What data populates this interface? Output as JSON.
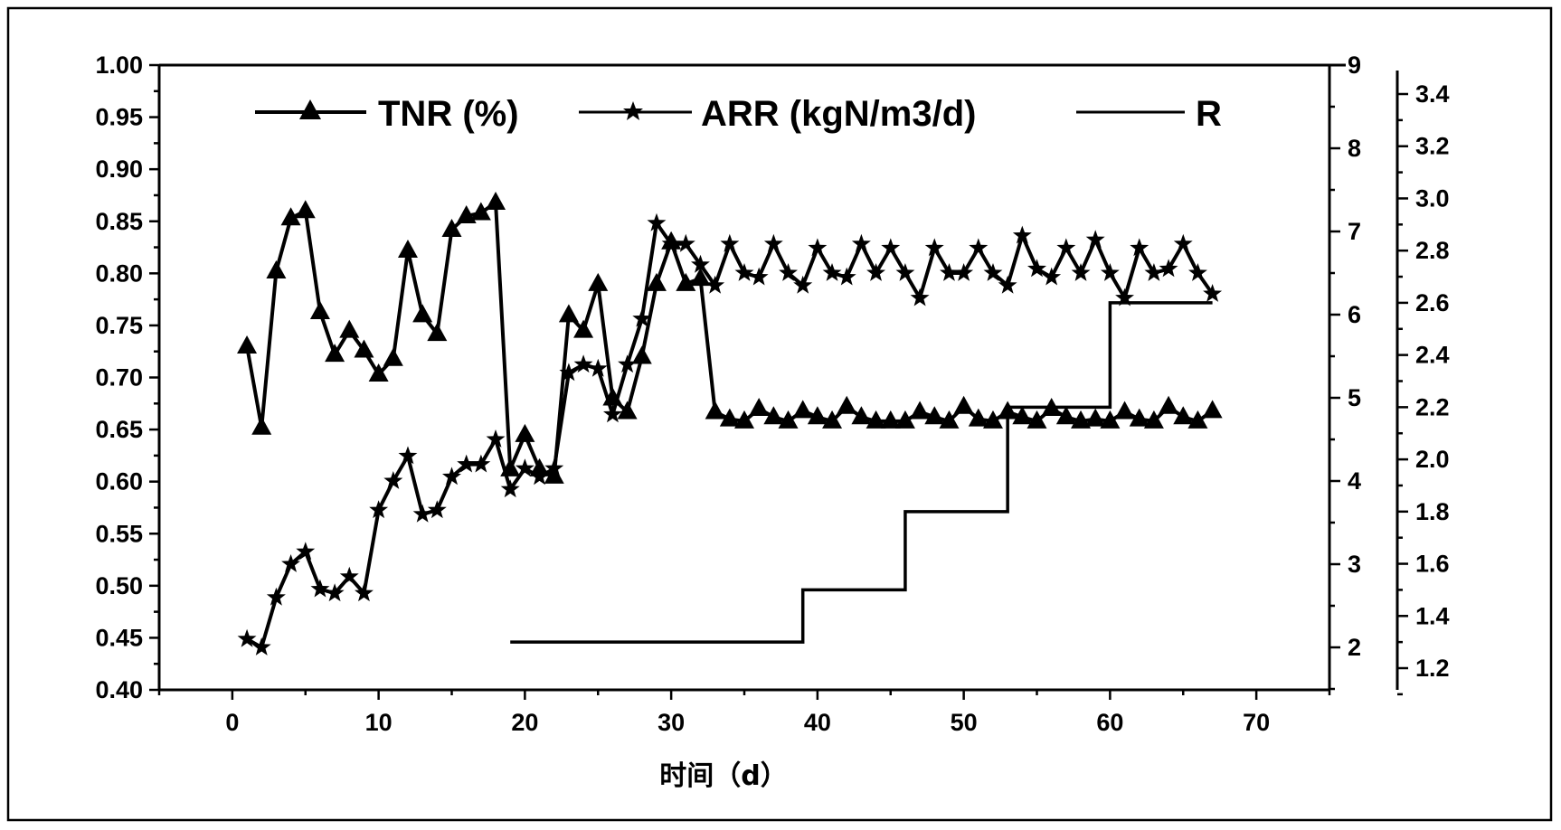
{
  "chart_data": {
    "type": "line",
    "xlabel": "时间（d）",
    "x_ticks": [
      0,
      10,
      20,
      30,
      40,
      50,
      60,
      70
    ],
    "xlim": [
      -5,
      75
    ],
    "y_left": {
      "range": [
        0.4,
        1.0
      ],
      "ticks": [
        "0.40",
        "0.45",
        "0.50",
        "0.55",
        "0.60",
        "0.65",
        "0.70",
        "0.75",
        "0.80",
        "0.85",
        "0.90",
        "0.95",
        "1.00"
      ]
    },
    "y_right1": {
      "range": [
        1.2,
        9.0
      ],
      "ticks": [
        "2",
        "3",
        "4",
        "5",
        "6",
        "7",
        "8",
        "9"
      ]
    },
    "y_right2": {
      "range": [
        1.1,
        3.5
      ],
      "ticks": [
        "1.2",
        "1.4",
        "1.6",
        "1.8",
        "2.0",
        "2.2",
        "2.4",
        "2.6",
        "2.8",
        "3.0",
        "3.2",
        "3.4"
      ]
    },
    "legend": [
      "TNR (%)",
      "ARR (kgN/m3/d)",
      "R"
    ],
    "legend_position": "top",
    "series": [
      {
        "name": "TNR (%)",
        "axis": "left",
        "marker": "triangle",
        "x": [
          1,
          2,
          3,
          4,
          5,
          6,
          7,
          8,
          9,
          10,
          11,
          12,
          13,
          14,
          15,
          16,
          17,
          18,
          19,
          20,
          21,
          22,
          23,
          24,
          25,
          26,
          27,
          28,
          29,
          30,
          31,
          32,
          33,
          34,
          35,
          36,
          37,
          38,
          39,
          40,
          41,
          42,
          43,
          44,
          45,
          46,
          47,
          48,
          49,
          50,
          51,
          52,
          53,
          54,
          55,
          56,
          57,
          58,
          59,
          60,
          61,
          62,
          63,
          64,
          65,
          66,
          67
        ],
        "y": [
          0.73,
          0.652,
          0.802,
          0.853,
          0.86,
          0.763,
          0.722,
          0.745,
          0.726,
          0.703,
          0.718,
          0.822,
          0.76,
          0.742,
          0.842,
          0.855,
          0.858,
          0.868,
          0.612,
          0.645,
          0.612,
          0.605,
          0.76,
          0.745,
          0.79,
          0.68,
          0.667,
          0.72,
          0.79,
          0.83,
          0.79,
          0.795,
          0.667,
          0.66,
          0.658,
          0.67,
          0.662,
          0.658,
          0.668,
          0.662,
          0.658,
          0.672,
          0.662,
          0.658,
          0.658,
          0.658,
          0.667,
          0.662,
          0.658,
          0.672,
          0.66,
          0.658,
          0.667,
          0.662,
          0.658,
          0.67,
          0.662,
          0.658,
          0.66,
          0.658,
          0.667,
          0.66,
          0.658,
          0.672,
          0.662,
          0.658,
          0.668
        ]
      },
      {
        "name": "ARR (kgN/m3/d)",
        "axis": "right1",
        "marker": "star",
        "x": [
          1,
          2,
          3,
          4,
          5,
          6,
          7,
          8,
          9,
          10,
          11,
          12,
          13,
          14,
          15,
          16,
          17,
          18,
          19,
          20,
          21,
          22,
          23,
          24,
          25,
          26,
          27,
          28,
          29,
          30,
          31,
          32,
          33,
          34,
          35,
          36,
          37,
          38,
          39,
          40,
          41,
          42,
          43,
          44,
          45,
          46,
          47,
          48,
          49,
          50,
          51,
          52,
          53,
          54,
          55,
          56,
          57,
          58,
          59,
          60,
          61,
          62,
          63,
          64,
          65,
          66,
          67
        ],
        "y": [
          2.1,
          2.0,
          2.6,
          3.0,
          3.15,
          2.7,
          2.65,
          2.85,
          2.65,
          3.65,
          4.0,
          4.3,
          3.6,
          3.65,
          4.05,
          4.2,
          4.2,
          4.5,
          3.9,
          4.15,
          4.05,
          4.15,
          5.3,
          5.4,
          5.35,
          4.8,
          5.4,
          5.95,
          7.1,
          6.85,
          6.85,
          6.6,
          6.35,
          6.85,
          6.5,
          6.45,
          6.85,
          6.5,
          6.35,
          6.8,
          6.5,
          6.45,
          6.85,
          6.5,
          6.8,
          6.5,
          6.2,
          6.8,
          6.5,
          6.5,
          6.8,
          6.5,
          6.35,
          6.95,
          6.55,
          6.45,
          6.8,
          6.5,
          6.9,
          6.5,
          6.2,
          6.8,
          6.5,
          6.55,
          6.85,
          6.5,
          6.25
        ]
      },
      {
        "name": "R",
        "axis": "right2",
        "marker": "none",
        "steps": [
          {
            "from": 19,
            "to": 39,
            "value": 1.3
          },
          {
            "from": 39,
            "to": 46,
            "value": 1.5
          },
          {
            "from": 46,
            "to": 53,
            "value": 1.8
          },
          {
            "from": 53,
            "to": 60,
            "value": 2.2
          },
          {
            "from": 60,
            "to": 67,
            "value": 2.6
          }
        ]
      }
    ],
    "grid": false
  }
}
